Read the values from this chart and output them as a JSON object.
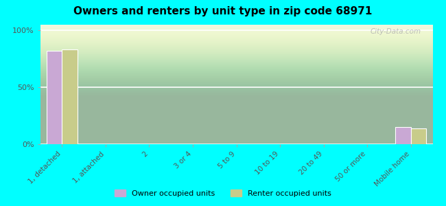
{
  "title": "Owners and renters by unit type in zip code 68971",
  "categories": [
    "1, detached",
    "1, attached",
    "2",
    "3 or 4",
    "5 to 9",
    "10 to 19",
    "20 to 49",
    "50 or more",
    "Mobile home"
  ],
  "owner_values": [
    82,
    0,
    0,
    0,
    0,
    0,
    0,
    0,
    15
  ],
  "renter_values": [
    83,
    0,
    0,
    0,
    0,
    0,
    0,
    0,
    14
  ],
  "owner_color": "#c9a8d4",
  "renter_color": "#c8cc8a",
  "background_color": "#00ffff",
  "yticks": [
    0,
    50,
    100
  ],
  "ylim": [
    0,
    105
  ],
  "bar_width": 0.35,
  "watermark": "City-Data.com",
  "legend_owner": "Owner occupied units",
  "legend_renter": "Renter occupied units"
}
